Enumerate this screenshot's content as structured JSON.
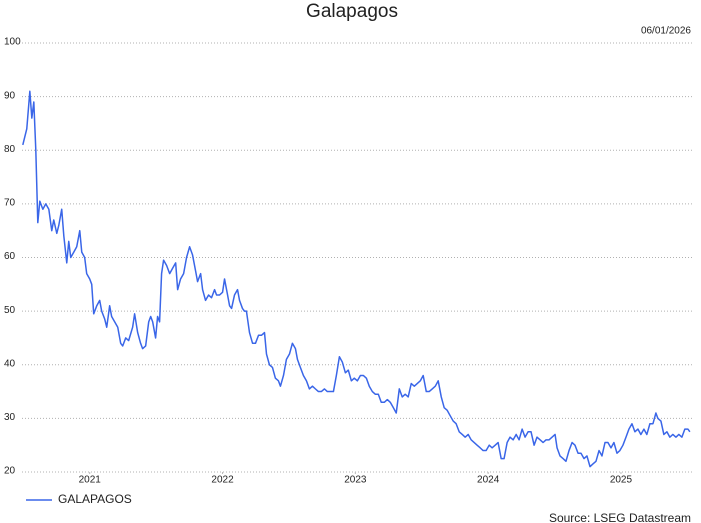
{
  "chart_data": {
    "type": "line",
    "title": "Galapagos",
    "date": "06/01/2026",
    "source": "Source: LSEG Datastream",
    "x": [
      2020.496,
      2020.526,
      2020.549,
      2020.564,
      2020.579,
      2020.594,
      2020.609,
      2020.624,
      2020.647,
      2020.669,
      2020.692,
      2020.714,
      2020.729,
      2020.752,
      2020.767,
      2020.789,
      2020.805,
      2020.827,
      2020.842,
      2020.857,
      2020.88,
      2020.902,
      2020.925,
      2020.94,
      2020.962,
      2020.977,
      2021.0,
      2021.015,
      2021.03,
      2021.053,
      2021.075,
      2021.09,
      2021.113,
      2021.128,
      2021.15,
      2021.165,
      2021.188,
      2021.211,
      2021.233,
      2021.248,
      2021.271,
      2021.293,
      2021.323,
      2021.338,
      2021.361,
      2021.383,
      2021.398,
      2021.421,
      2021.444,
      2021.459,
      2021.474,
      2021.496,
      2021.511,
      2021.526,
      2021.541,
      2021.556,
      2021.579,
      2021.602,
      2021.624,
      2021.647,
      2021.662,
      2021.684,
      2021.707,
      2021.729,
      2021.752,
      2021.774,
      2021.797,
      2021.812,
      2021.835,
      2021.85,
      2021.872,
      2021.895,
      2021.917,
      2021.94,
      2021.955,
      2021.977,
      2022.0,
      2022.015,
      2022.038,
      2022.053,
      2022.068,
      2022.09,
      2022.113,
      2022.128,
      2022.15,
      2022.165,
      2022.18,
      2022.203,
      2022.226,
      2022.248,
      2022.271,
      2022.293,
      2022.316,
      2022.331,
      2022.353,
      2022.376,
      2022.398,
      2022.421,
      2022.436,
      2022.459,
      2022.481,
      2022.504,
      2022.526,
      2022.549,
      2022.564,
      2022.586,
      2022.609,
      2022.632,
      2022.654,
      2022.677,
      2022.699,
      2022.722,
      2022.744,
      2022.767,
      2022.789,
      2022.812,
      2022.835,
      2022.857,
      2022.88,
      2022.902,
      2022.925,
      2022.947,
      2022.97,
      2022.992,
      2023.015,
      2023.038,
      2023.06,
      2023.083,
      2023.105,
      2023.128,
      2023.15,
      2023.173,
      2023.195,
      2023.218,
      2023.241,
      2023.263,
      2023.286,
      2023.308,
      2023.331,
      2023.353,
      2023.376,
      2023.398,
      2023.421,
      2023.444,
      2023.466,
      2023.489,
      2023.511,
      2023.534,
      2023.556,
      2023.579,
      2023.602,
      2023.624,
      2023.647,
      2023.669,
      2023.692,
      2023.714,
      2023.737,
      2023.759,
      2023.782,
      2023.805,
      2023.827,
      2023.85,
      2023.872,
      2023.895,
      2023.917,
      2023.94,
      2023.962,
      2023.985,
      2024.008,
      2024.03,
      2024.053,
      2024.075,
      2024.098,
      2024.12,
      2024.143,
      2024.165,
      2024.188,
      2024.211,
      2024.233,
      2024.256,
      2024.278,
      2024.301,
      2024.323,
      2024.346,
      2024.368,
      2024.391,
      2024.414,
      2024.436,
      2024.459,
      2024.481,
      2024.504,
      2024.519,
      2024.541,
      2024.564,
      2024.586,
      2024.609,
      2024.632,
      2024.654,
      2024.677,
      2024.699,
      2024.722,
      2024.744,
      2024.767,
      2024.789,
      2024.812,
      2024.835,
      2024.857,
      2024.88,
      2024.902,
      2024.925,
      2024.947,
      2024.97,
      2024.992,
      2025.015,
      2025.038,
      2025.06,
      2025.083,
      2025.105,
      2025.128,
      2025.15,
      2025.173,
      2025.195,
      2025.218,
      2025.241,
      2025.263,
      2025.278,
      2025.301,
      2025.323,
      2025.346,
      2025.368,
      2025.391,
      2025.414,
      2025.436,
      2025.459,
      2025.481,
      2025.504,
      2025.519
    ],
    "series": [
      {
        "name": "GALAPAGOS",
        "color": "#3a66e8",
        "values": [
          81,
          84,
          91,
          86,
          89,
          80,
          66.5,
          70.5,
          69,
          70,
          69,
          65,
          67,
          64.5,
          66,
          69,
          64,
          59,
          63,
          60,
          61,
          62,
          65,
          61,
          60,
          57,
          56,
          55,
          49.5,
          51,
          52,
          50,
          48.5,
          47,
          51,
          49,
          48,
          47,
          44,
          43.5,
          45,
          44.5,
          47,
          49.5,
          46,
          44,
          43,
          43.5,
          48,
          49,
          48,
          45,
          49,
          48,
          57,
          59.5,
          58.5,
          57,
          58,
          59,
          54,
          56,
          57,
          60,
          62,
          60.5,
          57.5,
          55.5,
          57,
          54,
          52,
          53,
          52.5,
          54,
          53,
          53,
          53.5,
          56,
          53,
          51,
          50.5,
          53,
          54,
          52,
          50.5,
          50,
          50,
          46,
          44,
          44,
          45.5,
          45.5,
          46,
          42,
          40,
          39.5,
          37.5,
          37,
          36,
          38,
          41,
          42,
          44,
          43,
          41,
          39.5,
          38,
          37,
          35.5,
          36,
          35.5,
          35,
          35,
          35.5,
          35,
          35,
          35,
          38,
          41.5,
          40.5,
          38.5,
          39,
          37,
          37.5,
          37,
          38,
          38,
          37.5,
          36,
          35,
          34.5,
          34.5,
          33,
          33,
          33.5,
          33,
          32,
          31,
          35.5,
          34,
          34.5,
          34,
          36.5,
          36,
          36.5,
          37,
          38,
          35,
          35,
          35.5,
          36,
          37,
          34,
          32,
          31.5,
          30.5,
          29.5,
          29,
          27.5,
          27,
          26.5,
          27,
          26,
          25.5,
          25,
          24.5,
          24,
          24,
          25,
          24.5,
          25,
          25.5,
          22.5,
          22.5,
          25.5,
          26.5,
          26,
          27,
          26,
          28,
          26.5,
          27.5,
          27.5,
          25,
          26.5,
          26,
          25.5,
          26,
          26,
          26.5,
          27,
          24.5,
          23,
          22.5,
          22,
          24,
          25.5,
          25,
          23.5,
          23.5,
          22.5,
          23,
          21,
          21.5,
          22,
          24,
          23,
          25.5,
          25.5,
          24.5,
          25.5,
          23.5,
          24,
          25,
          26.5,
          28,
          29,
          27.5,
          28,
          27,
          28,
          27,
          29,
          29,
          31,
          30,
          29.5,
          27,
          27.5,
          26.5,
          27,
          26.5,
          27,
          26.5,
          28,
          28,
          27.5
        ]
      }
    ],
    "xlim": [
      2020.49,
      2025.535
    ],
    "xticks": [
      2021,
      2022,
      2023,
      2024,
      2025
    ],
    "ylim": [
      20,
      100
    ],
    "yticks": [
      20,
      30,
      40,
      50,
      60,
      70,
      80,
      90,
      100
    ],
    "grid": true,
    "legend": "bottom-left"
  }
}
